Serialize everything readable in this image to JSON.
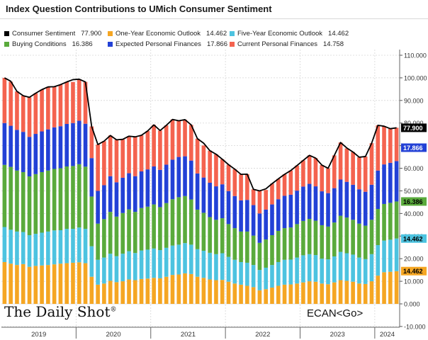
{
  "title": "Index Question Contributions to UMich Consumer Sentiment",
  "brand": "The Daily Shot",
  "source_tag": "ECAN<Go>",
  "legend": [
    {
      "name": "Consumer Sentiment",
      "value": "77.900",
      "color": "#000000"
    },
    {
      "name": "One-Year Economic Outlook",
      "value": "14.462",
      "color": "#f5a623"
    },
    {
      "name": "Five-Year Economic Outlook",
      "value": "14.462",
      "color": "#4dc3e0"
    },
    {
      "name": "Buying Conditions",
      "value": "16.386",
      "color": "#5aaa3c"
    },
    {
      "name": "Expected Personal Finances",
      "value": "17.866",
      "color": "#2341d6"
    },
    {
      "name": "Current Personal Finances",
      "value": "14.758",
      "color": "#f4634f"
    }
  ],
  "chart_data": {
    "type": "bar",
    "stacked": true,
    "x": [
      "2019-01",
      "2019-02",
      "2019-03",
      "2019-04",
      "2019-05",
      "2019-06",
      "2019-07",
      "2019-08",
      "2019-09",
      "2019-10",
      "2019-11",
      "2019-12",
      "2020-01",
      "2020-02",
      "2020-03",
      "2020-04",
      "2020-05",
      "2020-06",
      "2020-07",
      "2020-08",
      "2020-09",
      "2020-10",
      "2020-11",
      "2020-12",
      "2021-01",
      "2021-02",
      "2021-03",
      "2021-04",
      "2021-05",
      "2021-06",
      "2021-07",
      "2021-08",
      "2021-09",
      "2021-10",
      "2021-11",
      "2021-12",
      "2022-01",
      "2022-02",
      "2022-03",
      "2022-04",
      "2022-05",
      "2022-06",
      "2022-07",
      "2022-08",
      "2022-09",
      "2022-10",
      "2022-11",
      "2022-12",
      "2023-01",
      "2023-02",
      "2023-03",
      "2023-04",
      "2023-05",
      "2023-06",
      "2023-07",
      "2023-08",
      "2023-09",
      "2023-10",
      "2023-11",
      "2023-12",
      "2024-01",
      "2024-02",
      "2024-03",
      "2024-04"
    ],
    "x_tick_labels": [
      "2019",
      "2020",
      "2021",
      "2022",
      "2023",
      "2024"
    ],
    "series": [
      {
        "name": "One-Year Economic Outlook",
        "color": "#f5a623",
        "values": [
          18.5,
          17.8,
          17.2,
          17.6,
          16.4,
          16.8,
          17.0,
          17.2,
          17.5,
          17.8,
          18.0,
          18.2,
          18.4,
          18.0,
          12.0,
          8.5,
          9.0,
          10.2,
          9.6,
          10.0,
          10.8,
          10.5,
          11.0,
          11.2,
          11.5,
          11.3,
          12.0,
          12.8,
          13.0,
          13.5,
          13.2,
          12.0,
          11.5,
          10.8,
          10.5,
          10.6,
          9.8,
          9.0,
          8.5,
          8.0,
          7.4,
          6.0,
          6.5,
          7.2,
          8.0,
          8.5,
          8.6,
          9.0,
          9.5,
          10.0,
          9.8,
          9.0,
          8.7,
          9.5,
          10.5,
          10.2,
          9.8,
          9.0,
          8.8,
          10.0,
          12.5,
          14.0,
          14.2,
          14.462
        ]
      },
      {
        "name": "Five-Year Economic Outlook",
        "color": "#4dc3e0",
        "values": [
          15.5,
          15.0,
          14.8,
          14.2,
          14.0,
          14.2,
          14.5,
          14.8,
          15.0,
          14.8,
          15.2,
          15.0,
          15.4,
          15.2,
          13.5,
          11.0,
          11.5,
          12.0,
          11.5,
          12.2,
          12.5,
          12.0,
          12.6,
          12.8,
          13.0,
          12.5,
          12.8,
          13.0,
          13.2,
          13.4,
          13.0,
          12.2,
          12.0,
          11.8,
          11.5,
          11.8,
          11.0,
          10.5,
          10.0,
          10.2,
          9.8,
          9.0,
          9.5,
          10.0,
          10.5,
          11.0,
          11.0,
          11.5,
          12.0,
          12.0,
          11.8,
          11.0,
          11.0,
          11.5,
          12.5,
          12.2,
          12.0,
          11.5,
          11.0,
          12.0,
          13.5,
          14.0,
          14.2,
          14.462
        ]
      },
      {
        "name": "Buying Conditions",
        "color": "#5aaa3c",
        "values": [
          27.5,
          27.8,
          27.0,
          26.5,
          26.0,
          26.4,
          26.8,
          27.0,
          27.2,
          27.4,
          27.6,
          27.8,
          28.0,
          27.5,
          22.0,
          16.0,
          17.0,
          18.5,
          17.5,
          18.0,
          18.5,
          18.2,
          18.8,
          19.0,
          19.5,
          19.0,
          19.8,
          20.5,
          21.0,
          20.8,
          20.0,
          17.5,
          16.8,
          15.8,
          15.2,
          15.5,
          14.5,
          14.0,
          13.5,
          13.8,
          13.0,
          12.0,
          12.5,
          13.2,
          13.8,
          14.0,
          14.2,
          14.8,
          15.2,
          15.6,
          15.2,
          14.8,
          14.5,
          15.0,
          16.0,
          15.8,
          15.4,
          15.0,
          14.8,
          15.2,
          16.0,
          16.2,
          16.3,
          16.386
        ]
      },
      {
        "name": "Expected Personal Finances",
        "color": "#2341d6",
        "values": [
          18.5,
          18.2,
          18.0,
          17.8,
          17.5,
          17.8,
          18.0,
          18.2,
          18.4,
          18.6,
          18.8,
          19.0,
          19.2,
          19.0,
          17.0,
          14.5,
          15.0,
          15.8,
          15.2,
          15.6,
          16.0,
          15.8,
          16.2,
          16.5,
          16.8,
          16.5,
          17.0,
          17.5,
          17.8,
          17.6,
          17.2,
          16.0,
          15.6,
          15.2,
          14.8,
          15.0,
          14.6,
          14.2,
          13.8,
          14.0,
          13.5,
          13.0,
          13.2,
          13.6,
          14.0,
          14.3,
          14.5,
          14.8,
          15.2,
          15.5,
          15.2,
          15.0,
          14.8,
          15.2,
          16.0,
          15.8,
          15.5,
          15.2,
          15.0,
          15.5,
          17.0,
          17.5,
          17.7,
          17.866
        ]
      },
      {
        "name": "Current Personal Finances",
        "color": "#f4634f",
        "values": [
          20.0,
          19.5,
          17.0,
          16.0,
          17.5,
          18.0,
          18.5,
          18.8,
          18.0,
          18.4,
          18.6,
          18.2,
          18.4,
          18.5,
          14.0,
          20.5,
          19.5,
          18.0,
          18.8,
          17.0,
          16.4,
          17.4,
          16.0,
          17.0,
          18.4,
          17.4,
          17.4,
          17.8,
          16.0,
          16.2,
          15.8,
          15.4,
          14.2,
          14.2,
          14.2,
          11.1,
          11.7,
          11.9,
          11.5,
          11.4,
          7.0,
          10.0,
          8.7,
          9.2,
          9.0,
          9.5,
          10.7,
          11.1,
          11.6,
          12.6,
          12.5,
          11.6,
          11.0,
          14.5,
          16.4,
          14.8,
          14.5,
          14.2,
          15.6,
          18.4,
          20.0,
          16.9,
          15.1,
          14.758
        ]
      }
    ],
    "line_series": {
      "name": "Consumer Sentiment",
      "color": "#000000",
      "values": [
        100.0,
        98.5,
        94.0,
        92.1,
        91.4,
        93.2,
        94.8,
        96.0,
        96.1,
        97.0,
        98.2,
        99.2,
        99.4,
        98.2,
        78.5,
        70.5,
        72.0,
        74.5,
        72.6,
        72.8,
        74.2,
        73.9,
        74.6,
        76.5,
        79.2,
        76.7,
        79.0,
        81.6,
        81.0,
        81.5,
        79.2,
        73.1,
        71.1,
        67.8,
        66.2,
        64.0,
        61.6,
        59.6,
        57.3,
        57.4,
        50.7,
        50.0,
        50.9,
        53.2,
        55.3,
        57.3,
        59.0,
        61.2,
        63.5,
        65.7,
        64.5,
        61.4,
        60.0,
        65.7,
        71.4,
        69.0,
        67.2,
        64.9,
        65.2,
        71.1,
        79.0,
        78.6,
        77.5,
        77.9
      ]
    },
    "y_axis": {
      "side": "right",
      "ylim": [
        -10,
        110
      ],
      "ticks": [
        "110.000",
        "100.000",
        "90.000",
        "80.000",
        "70.000",
        "60.000",
        "50.000",
        "40.000",
        "30.000",
        "20.000",
        "10.000",
        "0.000",
        "-10.000"
      ]
    },
    "last_value_labels": [
      {
        "value": "77.900",
        "bg": "#000000",
        "fg": "#ffffff",
        "y": 77.9
      },
      {
        "value": "17.866",
        "bg": "#2341d6",
        "fg": "#ffffff",
        "y": 69.1
      },
      {
        "value": "16.386",
        "bg": "#5aaa3c",
        "fg": "#000000",
        "y": 45.3
      },
      {
        "value": "14.462",
        "bg": "#4dc3e0",
        "fg": "#000000",
        "y": 28.9
      },
      {
        "value": "14.462",
        "bg": "#f5a623",
        "fg": "#000000",
        "y": 14.5
      }
    ],
    "grid": true
  }
}
